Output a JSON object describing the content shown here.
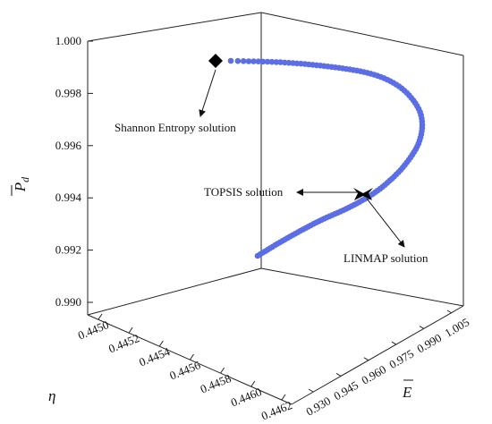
{
  "chart_data": {
    "type": "scatter3d",
    "axes": {
      "z": {
        "label_base": "P",
        "label_sub": "d",
        "overline": true,
        "range": [
          0.99,
          1.0
        ],
        "ticks": [
          "0.990",
          "0.992",
          "0.994",
          "0.996",
          "0.998",
          "1.000"
        ]
      },
      "eta": {
        "label": "η",
        "range": [
          0.4449,
          0.4463
        ],
        "ticks": [
          "0.4450",
          "0.4452",
          "0.4454",
          "0.4456",
          "0.4458",
          "0.4460",
          "0.4462"
        ]
      },
      "e": {
        "label": "E",
        "overline": true,
        "range": [
          0.93,
          1.01
        ],
        "ticks": [
          "0.930",
          "0.945",
          "0.960",
          "0.975",
          "0.990",
          "1.005"
        ]
      }
    },
    "series_color": "#5b6ee6",
    "point_path": [
      [
        258,
        68
      ],
      [
        320,
        70
      ],
      [
        380,
        76
      ],
      [
        420,
        84
      ],
      [
        448,
        98
      ],
      [
        466,
        118
      ],
      [
        472,
        138
      ],
      [
        468,
        160
      ],
      [
        456,
        180
      ],
      [
        440,
        198
      ],
      [
        418,
        216
      ],
      [
        390,
        232
      ],
      [
        355,
        248
      ],
      [
        318,
        268
      ],
      [
        288,
        286
      ]
    ],
    "points_count": 130,
    "annotations": [
      {
        "name": "shannon",
        "label": "Shannon Entropy solution",
        "marker": "diamond"
      },
      {
        "name": "topsis",
        "label": "TOPSIS solution",
        "marker": "none"
      },
      {
        "name": "linmap",
        "label": "LINMAP solution",
        "marker": "star"
      }
    ]
  }
}
